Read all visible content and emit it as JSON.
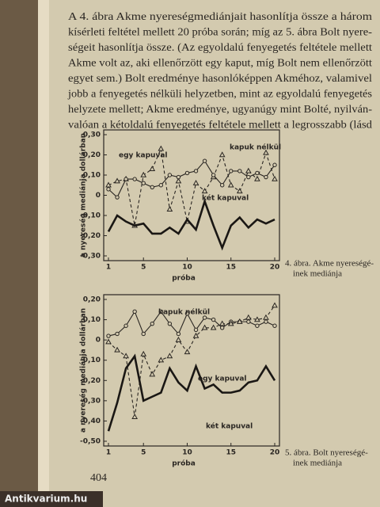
{
  "paragraph": [
    "A 4. ábra Akme nyereségmediánjait hasonlítja össze a három",
    "kísérleti feltétel mellett 20 próba során; míg az 5. ábra Bolt nyere-",
    "ségeit hasonlítja össze. (Az egyoldalú fenyegetés feltétele mellett",
    "Akme volt az, aki ellenőrzött egy kaput, míg Bolt nem ellenőrzött",
    "egyet sem.) Bolt eredménye hasonlóképpen Akméhoz, valamivel",
    "jobb a fenyegetés nélküli helyzetben, mint az egyoldalú fenyegetés",
    "helyzete mellett; Akme eredménye, ugyanúgy mint Bolté, nyilván-",
    "valóan a kétoldalú fenyegetés feltétele mellett a legrosszabb (lásd"
  ],
  "page_number": "404",
  "watermark": "Antikvarium.hu",
  "chart_data": [
    {
      "type": "line",
      "caption": [
        "4. ábra. Akme nyereségé-",
        "inek mediánja"
      ],
      "x_label": "próba",
      "y_label": "a nyereség mediánja dollárban",
      "x": [
        1,
        2,
        3,
        4,
        5,
        6,
        7,
        8,
        9,
        10,
        11,
        12,
        13,
        14,
        15,
        16,
        17,
        18,
        19,
        20
      ],
      "xlim": [
        1,
        20
      ],
      "xticks": [
        1,
        5,
        10,
        15,
        20
      ],
      "ylim": [
        -0.3,
        0.3
      ],
      "yticks": [
        {
          "value": 0.3,
          "label": "0,30"
        },
        {
          "value": 0.2,
          "label": "0,20"
        },
        {
          "value": 0.1,
          "label": "0,10"
        },
        0,
        {
          "value": -0.1,
          "label": "-0,10"
        },
        {
          "value": -0.2,
          "label": "-0,20"
        },
        {
          "value": -0.3,
          "label": "-0,30"
        }
      ],
      "series": [
        {
          "name": "egy kapuval",
          "color": "#2a2622",
          "marker": "triangle",
          "dashed": true,
          "values": [
            0.05,
            0.07,
            0.08,
            -0.15,
            0.1,
            0.13,
            0.23,
            -0.07,
            0.07,
            -0.13,
            0.06,
            0.02,
            0.09,
            0.2,
            0.05,
            0.02,
            0.12,
            0.08,
            0.21,
            0.08
          ]
        },
        {
          "name": "kapuk nélkül",
          "color": "#2a2622",
          "marker": "circle",
          "dashed": false,
          "values": [
            0.03,
            -0.01,
            0.08,
            0.08,
            0.06,
            0.04,
            0.05,
            0.1,
            0.09,
            0.11,
            0.12,
            0.17,
            0.1,
            0.05,
            0.12,
            0.12,
            0.09,
            0.11,
            0.09,
            0.15
          ]
        },
        {
          "name": "két kapuval",
          "color": "#1a1714",
          "marker": "none",
          "dashed": false,
          "bold": true,
          "values": [
            -0.18,
            -0.1,
            -0.13,
            -0.15,
            -0.14,
            -0.19,
            -0.19,
            -0.16,
            -0.19,
            -0.12,
            -0.17,
            -0.03,
            -0.15,
            -0.26,
            -0.15,
            -0.11,
            -0.16,
            -0.12,
            -0.14,
            -0.12
          ]
        }
      ]
    },
    {
      "type": "line",
      "caption": [
        "5. ábra. Bolt nyereségé-",
        "inek mediánja"
      ],
      "x_label": "próba",
      "y_label": "a nyereség mediánja dollárban",
      "x": [
        1,
        2,
        3,
        4,
        5,
        6,
        7,
        8,
        9,
        10,
        11,
        12,
        13,
        14,
        15,
        16,
        17,
        18,
        19,
        20
      ],
      "xlim": [
        1,
        20
      ],
      "xticks": [
        1,
        5,
        10,
        15,
        20
      ],
      "ylim": [
        -0.5,
        0.2
      ],
      "yticks": [
        {
          "value": 0.2,
          "label": "0,20"
        },
        {
          "value": 0.1,
          "label": "0,10"
        },
        0,
        {
          "value": -0.1,
          "label": "-0,10"
        },
        {
          "value": -0.2,
          "label": "-0,20"
        },
        {
          "value": -0.3,
          "label": "-0,30"
        },
        {
          "value": -0.4,
          "label": "-0,40"
        },
        {
          "value": -0.5,
          "label": "-0,50"
        }
      ],
      "series": [
        {
          "name": "kapuk nélkül",
          "color": "#2a2622",
          "marker": "circle",
          "dashed": false,
          "values": [
            0.02,
            0.03,
            0.07,
            0.14,
            0.03,
            0.08,
            0.14,
            0.08,
            0.03,
            0.13,
            0.05,
            0.11,
            0.1,
            0.06,
            0.09,
            0.09,
            0.09,
            0.07,
            0.09,
            0.07
          ]
        },
        {
          "name": "egy kapuval",
          "color": "#2a2622",
          "marker": "triangle",
          "dashed": true,
          "values": [
            -0.01,
            -0.05,
            -0.08,
            -0.38,
            -0.07,
            -0.17,
            -0.1,
            -0.08,
            0.0,
            -0.06,
            0.02,
            0.06,
            0.06,
            0.08,
            0.08,
            0.09,
            0.11,
            0.1,
            0.11,
            0.17
          ]
        },
        {
          "name": "két kapuval",
          "color": "#1a1714",
          "marker": "none",
          "dashed": false,
          "bold": true,
          "values": [
            -0.45,
            -0.31,
            -0.14,
            -0.08,
            -0.3,
            -0.28,
            -0.26,
            -0.14,
            -0.21,
            -0.25,
            -0.13,
            -0.24,
            -0.22,
            -0.26,
            -0.26,
            -0.25,
            -0.21,
            -0.2,
            -0.13,
            -0.2
          ]
        }
      ]
    }
  ]
}
